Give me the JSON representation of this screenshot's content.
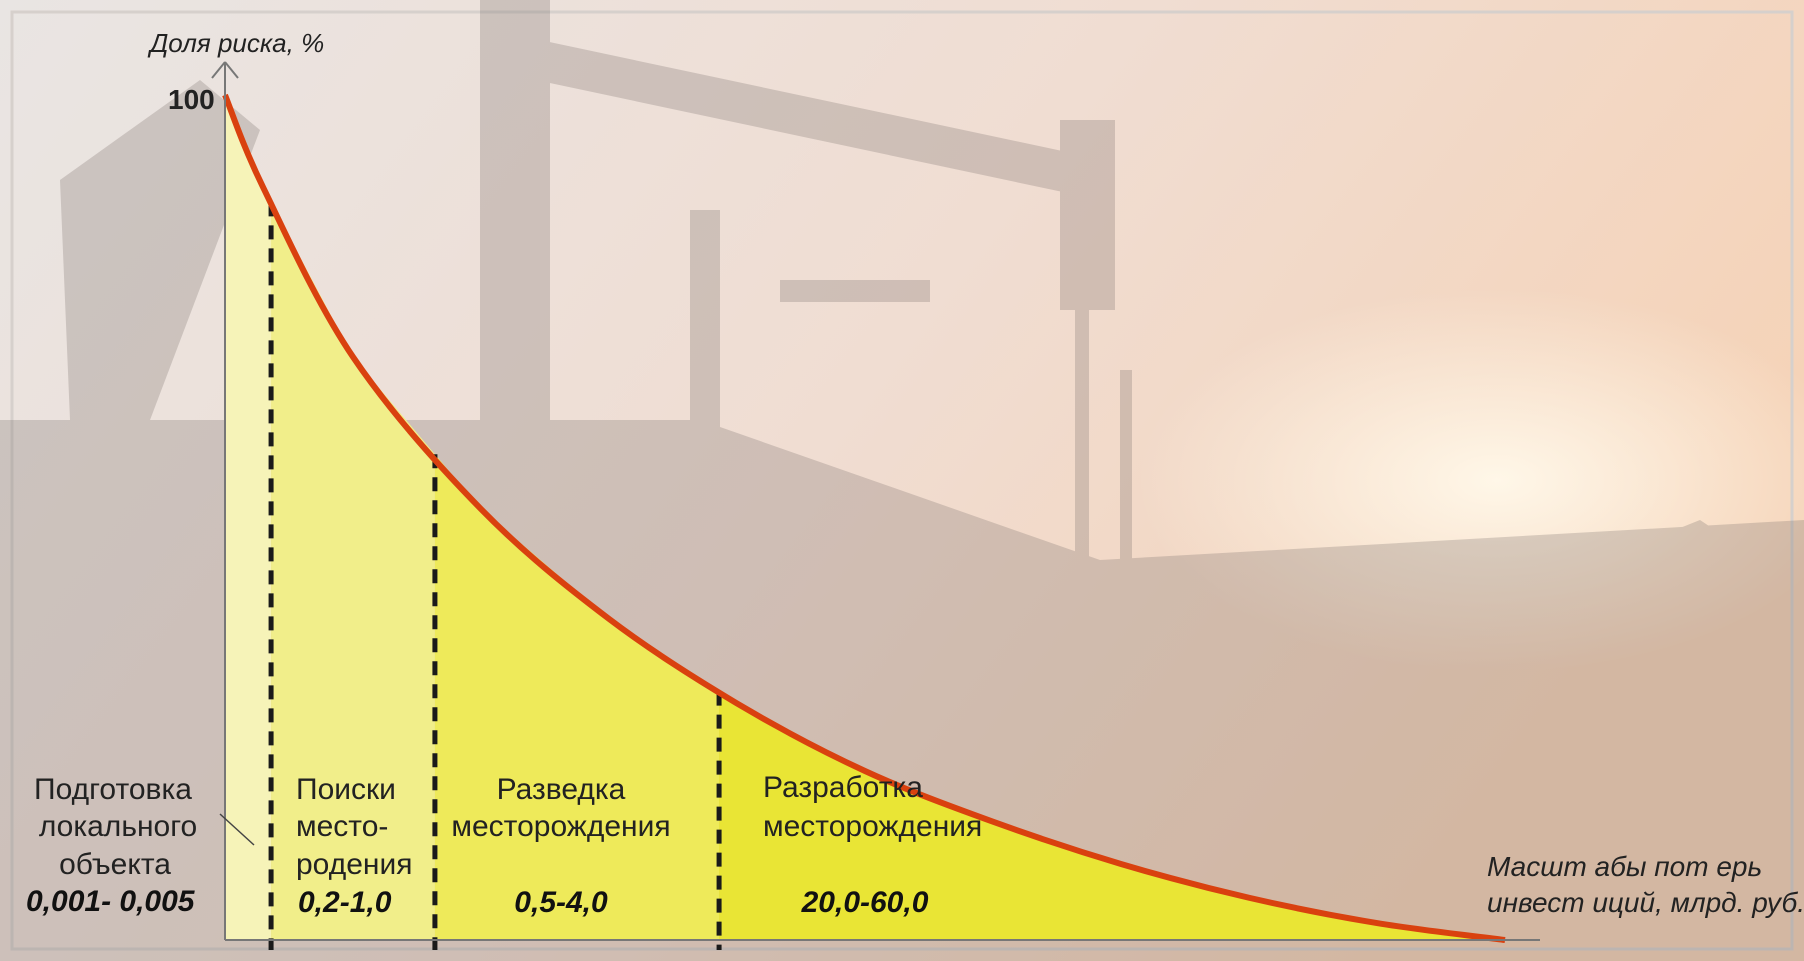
{
  "chart_data": {
    "type": "area",
    "ylabel": "Доля риска, %",
    "xlabel_line1": "Масшт абы пот ерь",
    "xlabel_line2": "инвест иций, млрд. руб.",
    "ytick_max": "100",
    "ylim": [
      0,
      100
    ],
    "curve": {
      "x": [
        0,
        0.03,
        0.1,
        0.2,
        0.3,
        0.4,
        0.5,
        0.6,
        0.7,
        0.8,
        0.9,
        1.0
      ],
      "y": [
        100,
        89,
        69,
        51,
        38,
        28,
        20,
        14,
        9,
        5,
        2,
        0
      ]
    },
    "boundaries": [
      0.036,
      0.164,
      0.386
    ],
    "stages": [
      {
        "name_lines": [
          "Подготовка",
          "локального",
          "объекта"
        ],
        "range": "0,001- 0,005",
        "color": "#f6f3b8"
      },
      {
        "name_lines": [
          "Поиски",
          "место-",
          "родения"
        ],
        "range": "0,2-1,0",
        "color": "#f1ee8a"
      },
      {
        "name_lines": [
          "Разведка",
          "месторождения"
        ],
        "range": "0,5-4,0",
        "color": "#eeea5a"
      },
      {
        "name_lines": [
          "Разработка",
          "месторождения"
        ],
        "range": "20,0-60,0",
        "color": "#e9e535"
      }
    ],
    "curve_color": "#d9410f"
  }
}
